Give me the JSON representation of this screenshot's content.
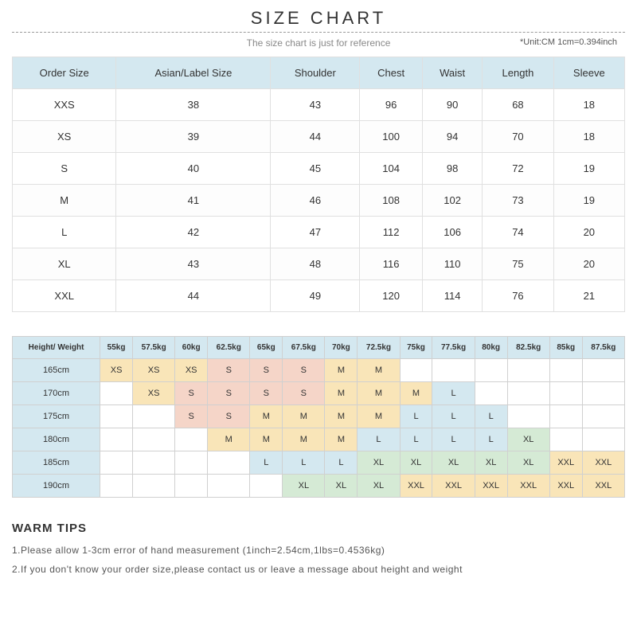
{
  "header": {
    "title": "SIZE CHART",
    "subtitle": "The size chart is just for reference",
    "unit": "*Unit:CM 1cm=0.394inch"
  },
  "sizeTable": {
    "columns": [
      "Order Size",
      "Asian/Label Size",
      "Shoulder",
      "Chest",
      "Waist",
      "Length",
      "Sleeve"
    ],
    "rows": [
      [
        "XXS",
        "38",
        "43",
        "96",
        "90",
        "68",
        "18"
      ],
      [
        "XS",
        "39",
        "44",
        "100",
        "94",
        "70",
        "18"
      ],
      [
        "S",
        "40",
        "45",
        "104",
        "98",
        "72",
        "19"
      ],
      [
        "M",
        "41",
        "46",
        "108",
        "102",
        "73",
        "19"
      ],
      [
        "L",
        "42",
        "47",
        "112",
        "106",
        "74",
        "20"
      ],
      [
        "XL",
        "43",
        "48",
        "116",
        "110",
        "75",
        "20"
      ],
      [
        "XXL",
        "44",
        "49",
        "120",
        "114",
        "76",
        "21"
      ]
    ]
  },
  "hwTable": {
    "cornerLabel": "Height/ Weight",
    "weights": [
      "55kg",
      "57.5kg",
      "60kg",
      "62.5kg",
      "65kg",
      "67.5kg",
      "70kg",
      "72.5kg",
      "75kg",
      "77.5kg",
      "80kg",
      "82.5kg",
      "85kg",
      "87.5kg"
    ],
    "heights": [
      "165cm",
      "170cm",
      "175cm",
      "180cm",
      "185cm",
      "190cm"
    ],
    "cells": [
      [
        "XS",
        "XS",
        "XS",
        "S",
        "S",
        "S",
        "M",
        "M",
        "",
        "",
        "",
        "",
        "",
        ""
      ],
      [
        "",
        "XS",
        "S",
        "S",
        "S",
        "S",
        "M",
        "M",
        "M",
        "L",
        "",
        "",
        "",
        ""
      ],
      [
        "",
        "",
        "S",
        "S",
        "M",
        "M",
        "M",
        "M",
        "L",
        "L",
        "L",
        "",
        "",
        ""
      ],
      [
        "",
        "",
        "",
        "M",
        "M",
        "M",
        "M",
        "L",
        "L",
        "L",
        "L",
        "XL",
        "",
        ""
      ],
      [
        "",
        "",
        "",
        "",
        "L",
        "L",
        "L",
        "XL",
        "XL",
        "XL",
        "XL",
        "XL",
        "XXL",
        "XXL"
      ],
      [
        "",
        "",
        "",
        "",
        "",
        "XL",
        "XL",
        "XL",
        "XXL",
        "XXL",
        "XXL",
        "XXL",
        "XXL",
        "XXL"
      ]
    ],
    "colors": {
      "XS": "#f9e5b8",
      "S": "#f5d5c8",
      "M": "#f9e5b8",
      "L": "#d4e8f0",
      "XL": "#d5ead5",
      "XXL": "#f9e5b8",
      "empty": "#ffffff",
      "header": "#d4e8f0",
      "border": "#d0d0d0"
    }
  },
  "tips": {
    "title": "WARM TIPS",
    "items": [
      "1.Please allow 1-3cm error of hand measurement (1inch=2.54cm,1lbs=0.4536kg)",
      "2.If you don't know your order size,please contact us or leave a message about height and weight"
    ]
  }
}
